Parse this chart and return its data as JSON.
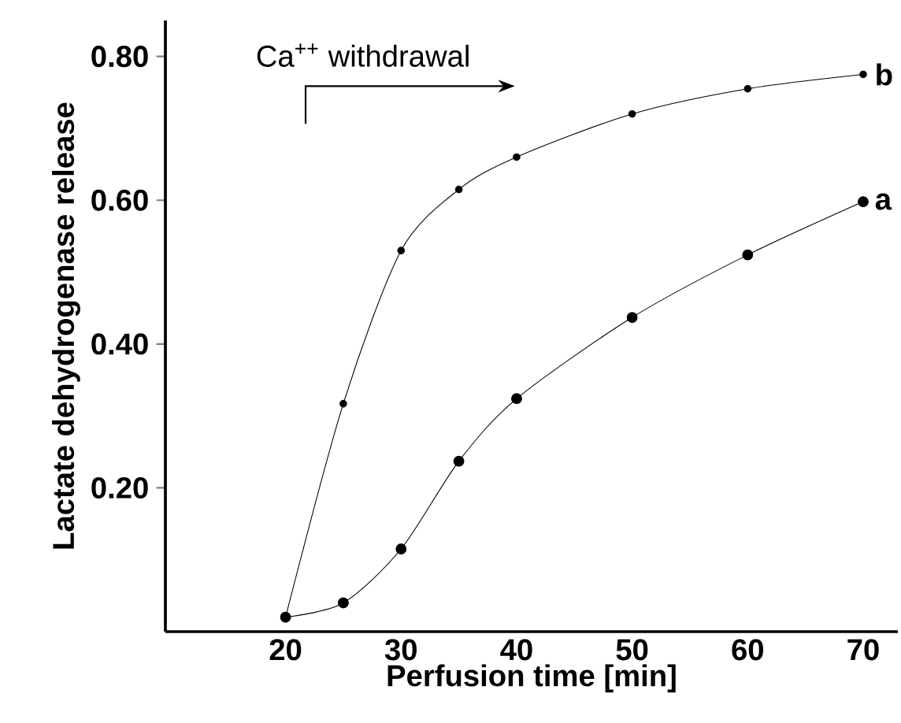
{
  "chart_data": {
    "type": "line",
    "xlabel": "Perfusion time  [min]",
    "ylabel": "Lactate dehydrogenase release",
    "x": [
      20,
      25,
      30,
      35,
      40,
      50,
      60,
      70
    ],
    "series": [
      {
        "name": "a",
        "color": "#000000",
        "values": [
          0.02,
          0.04,
          0.115,
          0.237,
          0.324,
          0.437,
          0.524,
          0.598
        ]
      },
      {
        "name": "b",
        "color": "#000000",
        "values": [
          0.02,
          0.317,
          0.53,
          0.615,
          0.66,
          0.72,
          0.755,
          0.775
        ]
      }
    ],
    "xlim": [
      9.6,
      73
    ],
    "ylim": [
      0,
      0.85
    ],
    "xticks": [
      20,
      30,
      40,
      50,
      60,
      70
    ],
    "yticks": [
      {
        "value": 0.2,
        "label": "0.20"
      },
      {
        "value": 0.4,
        "label": "0.40"
      },
      {
        "value": 0.6,
        "label": "0.60"
      },
      {
        "value": 0.8,
        "label": "0.80"
      }
    ],
    "marker": "circle",
    "line_style": "solid",
    "grid": false,
    "legend": false,
    "annotations": [
      "Ca$^{++}$ withdrawal"
    ]
  }
}
